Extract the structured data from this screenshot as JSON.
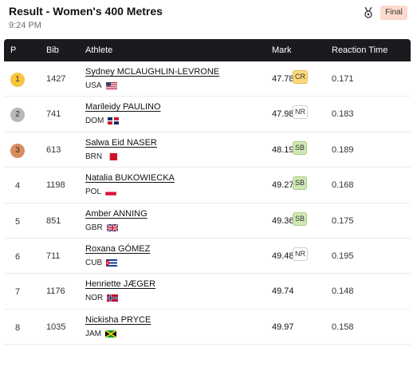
{
  "header": {
    "title": "Result - Women's 400 Metres",
    "time": "9:24 PM",
    "status_badge": "Final"
  },
  "columns": {
    "pos": "P",
    "bib": "Bib",
    "athlete": "Athlete",
    "mark": "Mark",
    "reaction": "Reaction Time"
  },
  "colors": {
    "header_bg": "#1b1b1f",
    "gold": "#f7c53e",
    "silver": "#b8b8b8",
    "bronze": "#d98c5f",
    "badge_final": "#fbd9cc"
  },
  "results": [
    {
      "pos": "1",
      "bib": "1427",
      "athlete": "Sydney MCLAUGHLIN-LEVRONE",
      "country": "USA",
      "flag": "usa-flag-icon",
      "mark": "47.78",
      "record": "CR",
      "reaction": "0.171"
    },
    {
      "pos": "2",
      "bib": "741",
      "athlete": "Marileidy PAULINO",
      "country": "DOM",
      "flag": "dom-flag-icon",
      "mark": "47.98",
      "record": "NR",
      "reaction": "0.183"
    },
    {
      "pos": "3",
      "bib": "613",
      "athlete": "Salwa Eid NASER",
      "country": "BRN",
      "flag": "brn-flag-icon",
      "mark": "48.19",
      "record": "SB",
      "reaction": "0.189"
    },
    {
      "pos": "4",
      "bib": "1198",
      "athlete": "Natalia BUKOWIECKA",
      "country": "POL",
      "flag": "pol-flag-icon",
      "mark": "49.27",
      "record": "SB",
      "reaction": "0.168"
    },
    {
      "pos": "5",
      "bib": "851",
      "athlete": "Amber ANNING",
      "country": "GBR",
      "flag": "gbr-flag-icon",
      "mark": "49.36",
      "record": "SB",
      "reaction": "0.175"
    },
    {
      "pos": "6",
      "bib": "711",
      "athlete": "Roxana GÓMEZ",
      "country": "CUB",
      "flag": "cub-flag-icon",
      "mark": "49.48",
      "record": "NR",
      "reaction": "0.195"
    },
    {
      "pos": "7",
      "bib": "1176",
      "athlete": "Henriette JÆGER",
      "country": "NOR",
      "flag": "nor-flag-icon",
      "mark": "49.74",
      "record": "",
      "reaction": "0.148"
    },
    {
      "pos": "8",
      "bib": "1035",
      "athlete": "Nickisha PRYCE",
      "country": "JAM",
      "flag": "jam-flag-icon",
      "mark": "49.97",
      "record": "",
      "reaction": "0.158"
    }
  ]
}
